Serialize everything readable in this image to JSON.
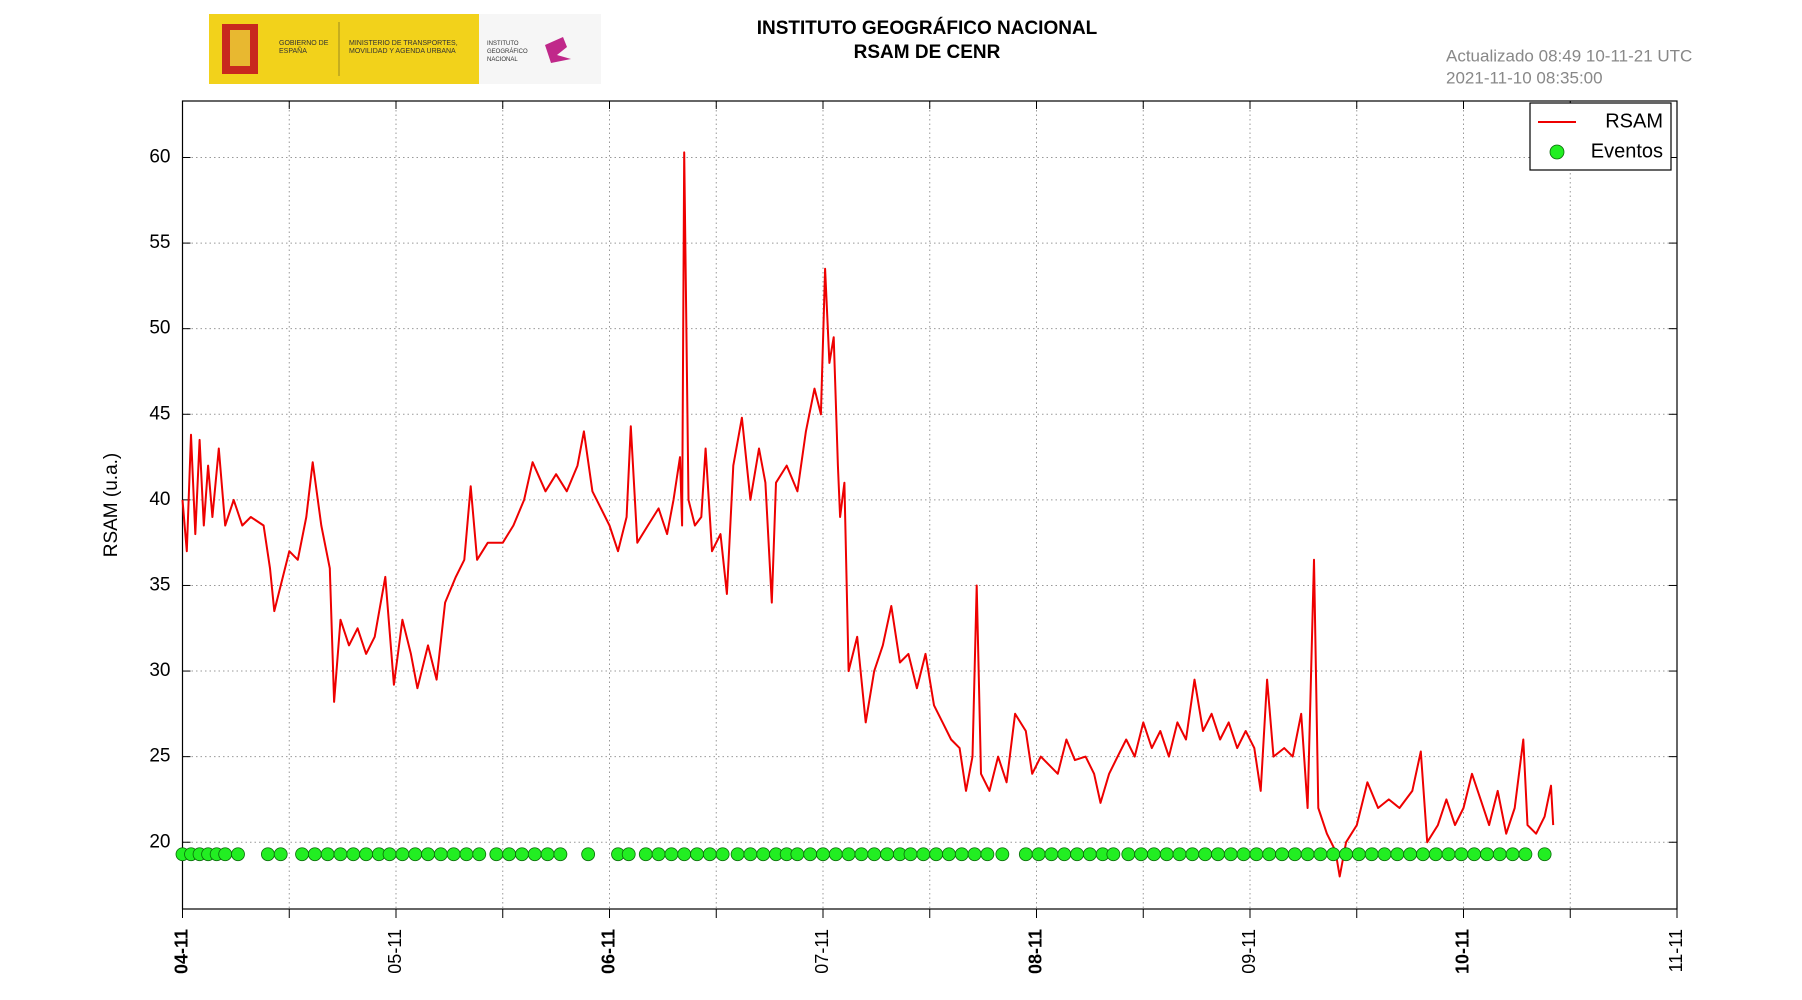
{
  "logo": {
    "government": "GOBIERNO DE ESPAÑA",
    "ministry": "MINISTERIO DE TRANSPORTES, MOVILIDAD Y AGENDA URBANA",
    "institute": "INSTITUTO GEOGRÁFICO NACIONAL"
  },
  "chart_data": {
    "type": "line",
    "title": "INSTITUTO GEOGRÁFICO NACIONAL",
    "subtitle": "RSAM DE CENR",
    "annotations": [
      "Actualizado 08:49 10-11-21 UTC",
      "2021-11-10 08:35:00"
    ],
    "ylabel": "RSAM (u.a.)",
    "xlim": [
      0,
      7
    ],
    "xticks": [
      {
        "value": 0,
        "label": "04-11"
      },
      {
        "value": 1,
        "label": "05-11"
      },
      {
        "value": 2,
        "label": "06-11"
      },
      {
        "value": 3,
        "label": "07-11"
      },
      {
        "value": 4,
        "label": "08-11"
      },
      {
        "value": 5,
        "label": "09-11"
      },
      {
        "value": 6,
        "label": "10-11"
      },
      {
        "value": 7,
        "label": "11-11"
      }
    ],
    "xminorticks": [
      0.5,
      1.5,
      2.5,
      3.5,
      4.5,
      5.5,
      6.5
    ],
    "ylim": [
      16.1,
      63.3
    ],
    "yticks": [
      20,
      25,
      30,
      35,
      40,
      45,
      50,
      55,
      60
    ],
    "grid": true,
    "legend": "upper right",
    "series": [
      {
        "name": "RSAM",
        "type": "line",
        "color": "#ee0000",
        "x": [
          0,
          0.02,
          0.04,
          0.06,
          0.08,
          0.1,
          0.12,
          0.14,
          0.17,
          0.2,
          0.24,
          0.28,
          0.32,
          0.38,
          0.41,
          0.43,
          0.46,
          0.5,
          0.54,
          0.58,
          0.61,
          0.65,
          0.69,
          0.71,
          0.74,
          0.78,
          0.82,
          0.86,
          0.9,
          0.95,
          0.99,
          1.03,
          1.07,
          1.1,
          1.15,
          1.19,
          1.23,
          1.28,
          1.32,
          1.35,
          1.38,
          1.43,
          1.5,
          1.55,
          1.6,
          1.64,
          1.7,
          1.75,
          1.8,
          1.85,
          1.88,
          1.92,
          1.96,
          2.0,
          2.04,
          2.08,
          2.1,
          2.13,
          2.18,
          2.23,
          2.27,
          2.3,
          2.33,
          2.34,
          2.35,
          2.37,
          2.4,
          2.43,
          2.45,
          2.48,
          2.52,
          2.55,
          2.58,
          2.62,
          2.66,
          2.7,
          2.73,
          2.76,
          2.78,
          2.83,
          2.88,
          2.92,
          2.96,
          2.99,
          3.01,
          3.03,
          3.05,
          3.07,
          3.08,
          3.1,
          3.12,
          3.16,
          3.2,
          3.24,
          3.28,
          3.32,
          3.36,
          3.4,
          3.44,
          3.48,
          3.52,
          3.56,
          3.6,
          3.64,
          3.67,
          3.7,
          3.72,
          3.74,
          3.78,
          3.82,
          3.86,
          3.9,
          3.95,
          3.98,
          4.02,
          4.06,
          4.1,
          4.14,
          4.18,
          4.23,
          4.27,
          4.3,
          4.34,
          4.38,
          4.42,
          4.46,
          4.5,
          4.54,
          4.58,
          4.62,
          4.66,
          4.7,
          4.74,
          4.78,
          4.82,
          4.86,
          4.9,
          4.94,
          4.98,
          5.02,
          5.05,
          5.08,
          5.11,
          5.16,
          5.2,
          5.24,
          5.27,
          5.3,
          5.32,
          5.36,
          5.4,
          5.42,
          5.45,
          5.5,
          5.55,
          5.6,
          5.65,
          5.7,
          5.76,
          5.8,
          5.83,
          5.88,
          5.92,
          5.96,
          6.0,
          6.04,
          6.08,
          6.12,
          6.16,
          6.2,
          6.24,
          6.28,
          6.3,
          6.34,
          6.38,
          6.41,
          6.42
        ],
        "values": [
          40,
          37,
          43.8,
          38,
          43.5,
          38.5,
          42,
          39,
          43,
          38.5,
          40,
          38.5,
          39,
          38.5,
          36,
          33.5,
          35,
          37,
          36.5,
          39,
          42.2,
          38.5,
          36,
          28.2,
          33,
          31.5,
          32.5,
          31,
          32,
          35.5,
          29.2,
          33,
          31,
          29,
          31.5,
          29.5,
          34,
          35.5,
          36.5,
          40.8,
          36.5,
          37.5,
          37.5,
          38.5,
          40,
          42.2,
          40.5,
          41.5,
          40.5,
          42,
          44,
          40.5,
          39.5,
          38.5,
          37,
          39,
          44.3,
          37.5,
          38.5,
          39.5,
          38,
          40,
          42.5,
          38.5,
          60.3,
          40,
          38.5,
          39,
          43,
          37,
          38,
          34.5,
          42,
          44.8,
          40,
          43,
          41,
          34,
          41,
          42,
          40.5,
          44,
          46.5,
          45,
          53.5,
          48,
          49.5,
          42,
          39,
          41,
          30,
          32,
          27,
          30,
          31.5,
          33.8,
          30.5,
          31,
          29,
          31,
          28,
          27,
          26,
          25.5,
          23,
          25,
          35,
          24,
          23,
          25,
          23.5,
          27.5,
          26.5,
          24,
          25,
          24.5,
          24,
          26,
          24.8,
          25,
          24,
          22.3,
          24,
          25,
          26,
          25,
          27,
          25.5,
          26.5,
          25,
          27,
          26,
          29.5,
          26.5,
          27.5,
          26,
          27,
          25.5,
          26.5,
          25.5,
          23,
          29.5,
          25,
          25.5,
          25,
          27.5,
          22,
          36.5,
          22,
          20.5,
          19.5,
          18,
          20,
          21,
          23.5,
          22,
          22.5,
          22,
          23,
          25.3,
          20,
          21,
          22.5,
          21,
          22,
          24,
          22.5,
          21,
          23,
          20.5,
          22,
          26,
          21,
          20.5,
          21.5,
          23.3,
          21
        ]
      },
      {
        "name": "Eventos",
        "type": "scatter",
        "color": "#22ee22",
        "x": [
          0,
          0.04,
          0.08,
          0.12,
          0.16,
          0.2,
          0.26,
          0.4,
          0.46,
          0.56,
          0.62,
          0.68,
          0.74,
          0.8,
          0.86,
          0.92,
          0.97,
          1.03,
          1.09,
          1.15,
          1.21,
          1.27,
          1.33,
          1.39,
          1.47,
          1.53,
          1.59,
          1.65,
          1.71,
          1.77,
          1.9,
          2.04,
          2.09,
          2.17,
          2.23,
          2.29,
          2.35,
          2.41,
          2.47,
          2.53,
          2.6,
          2.66,
          2.72,
          2.78,
          2.83,
          2.88,
          2.94,
          3.0,
          3.06,
          3.12,
          3.18,
          3.24,
          3.3,
          3.36,
          3.41,
          3.47,
          3.53,
          3.59,
          3.65,
          3.71,
          3.77,
          3.84,
          3.95,
          4.01,
          4.07,
          4.13,
          4.19,
          4.25,
          4.31,
          4.36,
          4.43,
          4.49,
          4.55,
          4.61,
          4.67,
          4.73,
          4.79,
          4.85,
          4.91,
          4.97,
          5.03,
          5.09,
          5.15,
          5.21,
          5.27,
          5.33,
          5.39,
          5.45,
          5.51,
          5.57,
          5.63,
          5.69,
          5.75,
          5.81,
          5.87,
          5.93,
          5.99,
          6.05,
          6.11,
          6.17,
          6.23,
          6.29,
          6.38
        ],
        "values": [
          19.3,
          19.3,
          19.3,
          19.3,
          19.3,
          19.3,
          19.3,
          19.3,
          19.3,
          19.3,
          19.3,
          19.3,
          19.3,
          19.3,
          19.3,
          19.3,
          19.3,
          19.3,
          19.3,
          19.3,
          19.3,
          19.3,
          19.3,
          19.3,
          19.3,
          19.3,
          19.3,
          19.3,
          19.3,
          19.3,
          19.3,
          19.3,
          19.3,
          19.3,
          19.3,
          19.3,
          19.3,
          19.3,
          19.3,
          19.3,
          19.3,
          19.3,
          19.3,
          19.3,
          19.3,
          19.3,
          19.3,
          19.3,
          19.3,
          19.3,
          19.3,
          19.3,
          19.3,
          19.3,
          19.3,
          19.3,
          19.3,
          19.3,
          19.3,
          19.3,
          19.3,
          19.3,
          19.3,
          19.3,
          19.3,
          19.3,
          19.3,
          19.3,
          19.3,
          19.3,
          19.3,
          19.3,
          19.3,
          19.3,
          19.3,
          19.3,
          19.3,
          19.3,
          19.3,
          19.3,
          19.3,
          19.3,
          19.3,
          19.3,
          19.3,
          19.3,
          19.3,
          19.3,
          19.3,
          19.3,
          19.3,
          19.3,
          19.3,
          19.3,
          19.3,
          19.3,
          19.3,
          19.3,
          19.3,
          19.3,
          19.3,
          19.3,
          19.3
        ]
      }
    ]
  }
}
